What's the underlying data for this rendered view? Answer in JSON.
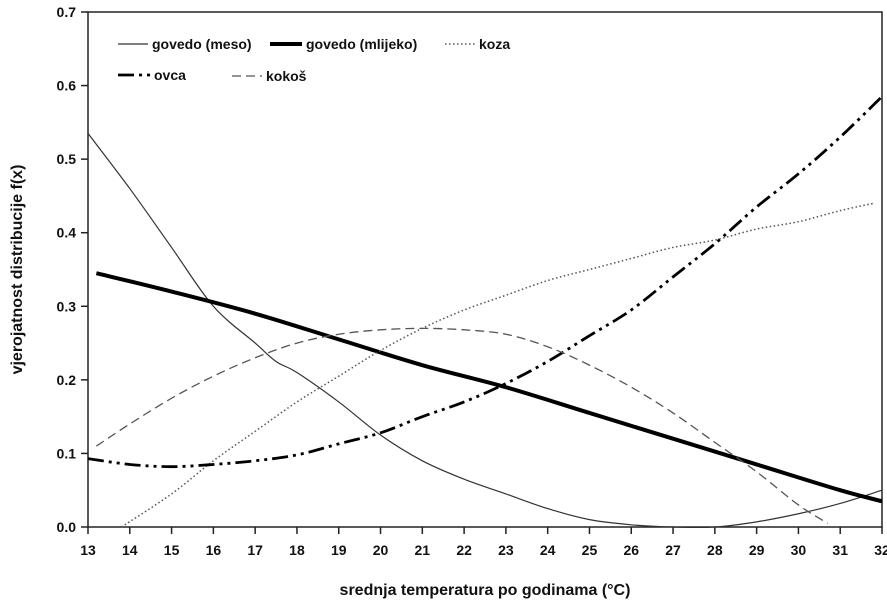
{
  "chart_data": {
    "type": "line",
    "xlabel": "srednja temperatura po godinama (°C)",
    "ylabel": "vjerojatnost distribucije f(x)",
    "xlim": [
      13,
      32
    ],
    "ylim": [
      0,
      0.7
    ],
    "x_ticks": [
      13,
      14,
      15,
      16,
      17,
      18,
      19,
      20,
      21,
      22,
      23,
      24,
      25,
      26,
      27,
      28,
      29,
      30,
      31,
      32
    ],
    "x_tick_labels": [
      "13",
      "14",
      "15",
      "16",
      "17",
      "18",
      "19",
      "20",
      "21",
      "22",
      "23",
      "24",
      "25",
      "26",
      "27",
      "28",
      "29",
      "30",
      "31",
      "32"
    ],
    "y_ticks": [
      0,
      0.1,
      0.2,
      0.3,
      0.4,
      0.5,
      0.6,
      0.7
    ],
    "y_tick_labels": [
      "0.0",
      "0.1",
      "0.2",
      "0.3",
      "0.4",
      "0.5",
      "0.6",
      "0.7"
    ],
    "grid": false,
    "legend_position": "top-left",
    "series": [
      {
        "name": "govedo (meso)",
        "style": "thin-solid",
        "color": "#333333",
        "points": [
          [
            13,
            0.535
          ],
          [
            14,
            0.46
          ],
          [
            15,
            0.38
          ],
          [
            16,
            0.3
          ],
          [
            17,
            0.25
          ],
          [
            17.5,
            0.225
          ],
          [
            18,
            0.21
          ],
          [
            19,
            0.17
          ],
          [
            20,
            0.125
          ],
          [
            21,
            0.09
          ],
          [
            22,
            0.065
          ],
          [
            23,
            0.045
          ],
          [
            24,
            0.025
          ],
          [
            25,
            0.01
          ],
          [
            26,
            0.003
          ],
          [
            27,
            0.0
          ],
          [
            28,
            0.0
          ],
          [
            29,
            0.007
          ],
          [
            30,
            0.018
          ],
          [
            31,
            0.032
          ],
          [
            32,
            0.05
          ]
        ]
      },
      {
        "name": "govedo (mlijeko)",
        "style": "thick-solid",
        "color": "#000000",
        "points": [
          [
            13.2,
            0.345
          ],
          [
            15,
            0.32
          ],
          [
            17,
            0.29
          ],
          [
            19,
            0.255
          ],
          [
            21,
            0.22
          ],
          [
            23,
            0.19
          ],
          [
            25,
            0.155
          ],
          [
            27,
            0.12
          ],
          [
            29,
            0.085
          ],
          [
            31,
            0.05
          ],
          [
            32,
            0.035
          ]
        ]
      },
      {
        "name": "koza",
        "style": "dotted",
        "color": "#555555",
        "points": [
          [
            13.8,
            0.0
          ],
          [
            15,
            0.045
          ],
          [
            16,
            0.09
          ],
          [
            17,
            0.13
          ],
          [
            18,
            0.17
          ],
          [
            19,
            0.205
          ],
          [
            20,
            0.24
          ],
          [
            21,
            0.27
          ],
          [
            22,
            0.295
          ],
          [
            23,
            0.315
          ],
          [
            24,
            0.335
          ],
          [
            25,
            0.35
          ],
          [
            26,
            0.365
          ],
          [
            27,
            0.38
          ],
          [
            28,
            0.39
          ],
          [
            29,
            0.405
          ],
          [
            30,
            0.415
          ],
          [
            31,
            0.43
          ],
          [
            31.8,
            0.44
          ]
        ]
      },
      {
        "name": "ovca",
        "style": "dash-dot-dot",
        "color": "#000000",
        "points": [
          [
            13,
            0.093
          ],
          [
            14,
            0.085
          ],
          [
            15,
            0.082
          ],
          [
            16,
            0.085
          ],
          [
            17,
            0.09
          ],
          [
            18,
            0.098
          ],
          [
            19,
            0.113
          ],
          [
            20,
            0.128
          ],
          [
            21,
            0.15
          ],
          [
            22,
            0.17
          ],
          [
            23,
            0.195
          ],
          [
            24,
            0.225
          ],
          [
            25,
            0.26
          ],
          [
            26,
            0.295
          ],
          [
            27,
            0.34
          ],
          [
            28,
            0.385
          ],
          [
            29,
            0.435
          ],
          [
            30,
            0.48
          ],
          [
            31,
            0.53
          ],
          [
            32,
            0.585
          ]
        ]
      },
      {
        "name": "kokoš",
        "style": "dashed",
        "color": "#555555",
        "points": [
          [
            13.2,
            0.11
          ],
          [
            14,
            0.14
          ],
          [
            15,
            0.175
          ],
          [
            16,
            0.205
          ],
          [
            17,
            0.23
          ],
          [
            18,
            0.25
          ],
          [
            19,
            0.262
          ],
          [
            20,
            0.268
          ],
          [
            21,
            0.27
          ],
          [
            22,
            0.268
          ],
          [
            23,
            0.262
          ],
          [
            24,
            0.245
          ],
          [
            25,
            0.22
          ],
          [
            26,
            0.19
          ],
          [
            27,
            0.155
          ],
          [
            28,
            0.115
          ],
          [
            29,
            0.075
          ],
          [
            30,
            0.03
          ],
          [
            30.7,
            0.005
          ]
        ]
      }
    ]
  }
}
